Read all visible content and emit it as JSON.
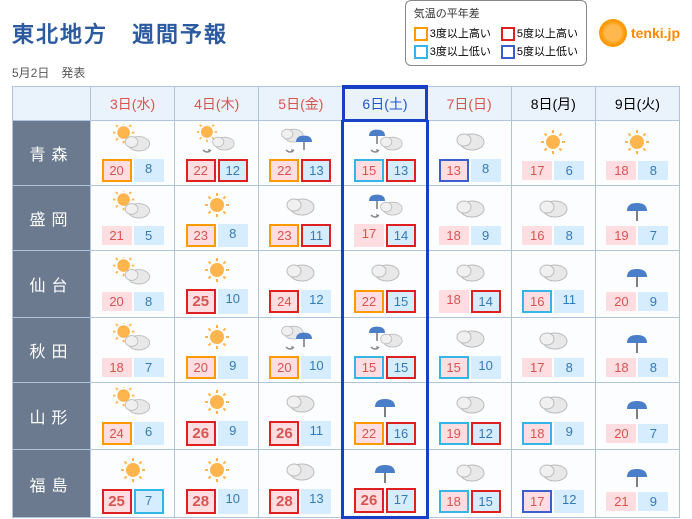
{
  "title": "東北地方　週間予報",
  "issued": "5月2日　発表",
  "logo_text": "tenki.jp",
  "legend": {
    "heading": "気温の平年差",
    "items": [
      {
        "color": "#ff9900",
        "label": "3度以上高い"
      },
      {
        "color": "#e02020",
        "label": "5度以上高い"
      },
      {
        "color": "#33b5e5",
        "label": "3度以上低い"
      },
      {
        "color": "#3a5fcd",
        "label": "5度以上低い"
      }
    ]
  },
  "days": [
    {
      "label": "3日(水)",
      "cls": "sun"
    },
    {
      "label": "4日(木)",
      "cls": "sun"
    },
    {
      "label": "5日(金)",
      "cls": "sun"
    },
    {
      "label": "6日(土)",
      "cls": "sat",
      "highlight": true
    },
    {
      "label": "7日(日)",
      "cls": "sun"
    },
    {
      "label": "8日(月)",
      "cls": ""
    },
    {
      "label": "9日(火)",
      "cls": ""
    }
  ],
  "cities": [
    "青森",
    "盛岡",
    "仙台",
    "秋田",
    "山形",
    "福島"
  ],
  "grid": [
    [
      {
        "icon": "sun-cloud",
        "hi": 20,
        "hc": "o",
        "lo": 8,
        "lc": "n"
      },
      {
        "icon": "sun-cloud-arrow",
        "hi": 22,
        "hc": "r-sm",
        "lo": 12,
        "lc": "r"
      },
      {
        "icon": "cloud-rain-arrow",
        "hi": 22,
        "hc": "o",
        "lo": 13,
        "lc": "r"
      },
      {
        "icon": "rain-cloud-arrow",
        "hi": 15,
        "hc": "c",
        "lo": 13,
        "lc": "r"
      },
      {
        "icon": "cloud",
        "hi": 13,
        "hc": "b",
        "lo": 8,
        "lc": "n"
      },
      {
        "icon": "sun",
        "hi": 17,
        "hc": "n",
        "lo": 6,
        "lc": "n"
      },
      {
        "icon": "sun",
        "hi": 18,
        "hc": "n",
        "lo": 8,
        "lc": "n"
      }
    ],
    [
      {
        "icon": "sun-cloud",
        "hi": 21,
        "hc": "n",
        "lo": 5,
        "lc": "n"
      },
      {
        "icon": "sun",
        "hi": 23,
        "hc": "o",
        "lo": 8,
        "lc": "n"
      },
      {
        "icon": "cloud",
        "hi": 23,
        "hc": "o",
        "lo": 11,
        "lc": "r"
      },
      {
        "icon": "rain-cloud-arrow",
        "hi": 17,
        "hc": "n",
        "lo": 14,
        "lc": "r"
      },
      {
        "icon": "cloud",
        "hi": 18,
        "hc": "n",
        "lo": 9,
        "lc": "n"
      },
      {
        "icon": "cloud",
        "hi": 16,
        "hc": "n",
        "lo": 8,
        "lc": "n"
      },
      {
        "icon": "rain",
        "hi": 19,
        "hc": "n",
        "lo": 7,
        "lc": "n"
      }
    ],
    [
      {
        "icon": "sun-cloud",
        "hi": 20,
        "hc": "n",
        "lo": 8,
        "lc": "n"
      },
      {
        "icon": "sun",
        "hi": 25,
        "hc": "r",
        "lo": 10,
        "lc": "n"
      },
      {
        "icon": "cloud",
        "hi": 24,
        "hc": "r-sm",
        "lo": 12,
        "lc": "n"
      },
      {
        "icon": "cloud",
        "hi": 22,
        "hc": "o",
        "lo": 15,
        "lc": "r"
      },
      {
        "icon": "cloud",
        "hi": 18,
        "hc": "n",
        "lo": 14,
        "lc": "r"
      },
      {
        "icon": "cloud",
        "hi": 16,
        "hc": "c",
        "lo": 11,
        "lc": "n"
      },
      {
        "icon": "rain",
        "hi": 20,
        "hc": "n",
        "lo": 9,
        "lc": "n"
      }
    ],
    [
      {
        "icon": "sun-cloud",
        "hi": 18,
        "hc": "n",
        "lo": 7,
        "lc": "n"
      },
      {
        "icon": "sun",
        "hi": 20,
        "hc": "o",
        "lo": 9,
        "lc": "n"
      },
      {
        "icon": "cloud-rain-arrow",
        "hi": 20,
        "hc": "o",
        "lo": 10,
        "lc": "n"
      },
      {
        "icon": "rain-cloud-arrow",
        "hi": 15,
        "hc": "c",
        "lo": 15,
        "lc": "r"
      },
      {
        "icon": "cloud",
        "hi": 15,
        "hc": "c",
        "lo": 10,
        "lc": "n"
      },
      {
        "icon": "cloud",
        "hi": 17,
        "hc": "n",
        "lo": 8,
        "lc": "n"
      },
      {
        "icon": "rain",
        "hi": 18,
        "hc": "n",
        "lo": 8,
        "lc": "n"
      }
    ],
    [
      {
        "icon": "sun-cloud",
        "hi": 24,
        "hc": "o",
        "lo": 6,
        "lc": "n"
      },
      {
        "icon": "sun",
        "hi": 26,
        "hc": "r",
        "lo": 9,
        "lc": "n"
      },
      {
        "icon": "cloud",
        "hi": 26,
        "hc": "r",
        "lo": 11,
        "lc": "n"
      },
      {
        "icon": "rain",
        "hi": 22,
        "hc": "o",
        "lo": 16,
        "lc": "r"
      },
      {
        "icon": "cloud",
        "hi": 19,
        "hc": "c",
        "lo": 12,
        "lc": "r"
      },
      {
        "icon": "cloud",
        "hi": 18,
        "hc": "c",
        "lo": 9,
        "lc": "n"
      },
      {
        "icon": "rain",
        "hi": 20,
        "hc": "n",
        "lo": 7,
        "lc": "n"
      }
    ],
    [
      {
        "icon": "sun",
        "hi": 25,
        "hc": "r",
        "lo": 7,
        "lc": "c"
      },
      {
        "icon": "sun",
        "hi": 28,
        "hc": "r",
        "lo": 10,
        "lc": "n"
      },
      {
        "icon": "cloud",
        "hi": 28,
        "hc": "r",
        "lo": 13,
        "lc": "n"
      },
      {
        "icon": "rain",
        "hi": 26,
        "hc": "r",
        "lo": 17,
        "lc": "r"
      },
      {
        "icon": "cloud",
        "hi": 18,
        "hc": "c",
        "lo": 15,
        "lc": "r"
      },
      {
        "icon": "cloud",
        "hi": 17,
        "hc": "b",
        "lo": 12,
        "lc": "n"
      },
      {
        "icon": "rain",
        "hi": 21,
        "hc": "n",
        "lo": 9,
        "lc": "n"
      }
    ]
  ],
  "style": {
    "border_color": "#b0c4de",
    "header_bg": "#eaf2fb",
    "city_bg": "#6b7a8f",
    "hi_bg": "#ffdde1",
    "hi_fg": "#d9534f",
    "lo_bg": "#d6ecff",
    "lo_fg": "#337ab7",
    "highlight_border": "#1740c4"
  }
}
